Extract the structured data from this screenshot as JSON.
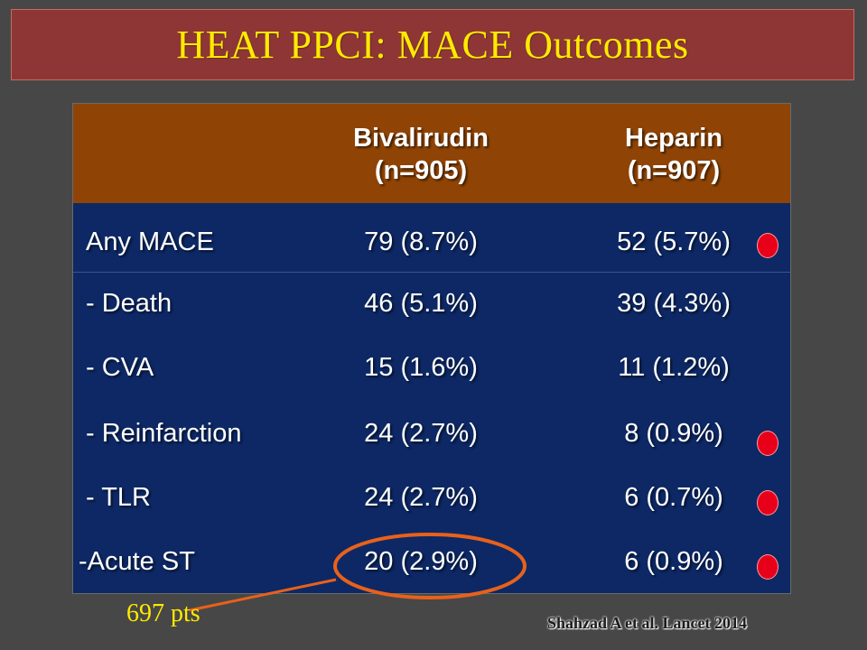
{
  "title": "HEAT PPCI: MACE Outcomes",
  "table": {
    "headers": [
      {
        "line1": "Bivalirudin",
        "line2": "(n=905)"
      },
      {
        "line1": "Heparin",
        "line2": "(n=907)"
      }
    ],
    "rows": [
      {
        "label": "Any MACE",
        "bivalirudin": "79 (8.7%)",
        "heparin": "52 (5.7%)",
        "flagged": true
      },
      {
        "label": "- Death",
        "bivalirudin": "46 (5.1%)",
        "heparin": "39 (4.3%)",
        "flagged": false
      },
      {
        "label": "- CVA",
        "bivalirudin": "15 (1.6%)",
        "heparin": "11 (1.2%)",
        "flagged": false
      },
      {
        "label": "- Reinfarction",
        "bivalirudin": "24 (2.7%)",
        "heparin": "8 (0.9%)",
        "flagged": true
      },
      {
        "label": "- TLR",
        "bivalirudin": "24 (2.7%)",
        "heparin": "6 (0.7%)",
        "flagged": true
      },
      {
        "label": "-Acute ST",
        "bivalirudin": "20 (2.9%)",
        "heparin": "6 (0.9%)",
        "flagged": true
      }
    ]
  },
  "annotation": {
    "pts_label": "697 pts"
  },
  "citation": "Shahzad A et al. Lancet 2014",
  "colors": {
    "title_bg": "#8e3636",
    "title_text": "#ffea00",
    "header_bg": "#8f4405",
    "table_bg": "#0d2865",
    "flag_dot": "#e8001a",
    "highlight_ellipse": "#e8611a"
  },
  "icons": {
    "flag_dot": "red-dot-marker",
    "highlight": "orange-ellipse-highlight"
  }
}
